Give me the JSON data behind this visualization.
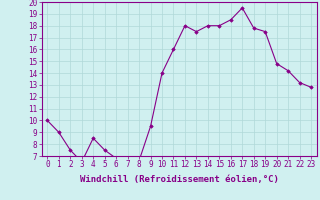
{
  "x_data": [
    0,
    1,
    2,
    3,
    4,
    5,
    6,
    7,
    8,
    9,
    10,
    11,
    12,
    13,
    14,
    15,
    16,
    17,
    18,
    19,
    20,
    21,
    22,
    23
  ],
  "y_data": [
    10,
    9,
    7.5,
    6.5,
    8.5,
    7.5,
    6.8,
    6.6,
    6.6,
    9.5,
    14,
    16,
    18,
    17.5,
    18,
    18,
    18.5,
    19.5,
    17.8,
    17.5,
    14.8,
    14.2,
    13.2,
    12.8
  ],
  "line_color": "#880088",
  "marker": "D",
  "markersize": 1.8,
  "linewidth": 0.8,
  "bg_color": "#d0f0f0",
  "grid_color": "#b0d8d8",
  "xlabel": "Windchill (Refroidissement éolien,°C)",
  "xlim": [
    -0.5,
    23.5
  ],
  "ylim": [
    7,
    20
  ],
  "yticks": [
    7,
    8,
    9,
    10,
    11,
    12,
    13,
    14,
    15,
    16,
    17,
    18,
    19,
    20
  ],
  "xticks": [
    0,
    1,
    2,
    3,
    4,
    5,
    6,
    7,
    8,
    9,
    10,
    11,
    12,
    13,
    14,
    15,
    16,
    17,
    18,
    19,
    20,
    21,
    22,
    23
  ],
  "tick_color": "#880088",
  "label_color": "#880088",
  "font_family": "monospace",
  "xlabel_fontsize": 6.5,
  "tick_fontsize": 5.5
}
